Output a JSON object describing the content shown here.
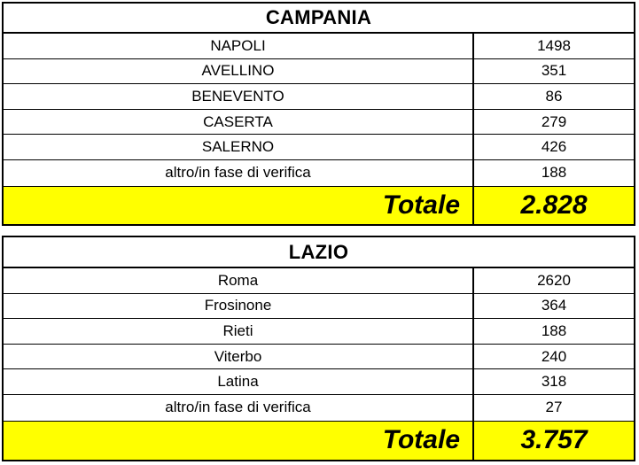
{
  "campania": {
    "title": "CAMPANIA",
    "rows": [
      {
        "name": "NAPOLI",
        "value": "1498"
      },
      {
        "name": "AVELLINO",
        "value": "351"
      },
      {
        "name": "BENEVENTO",
        "value": "86"
      },
      {
        "name": "CASERTA",
        "value": "279"
      },
      {
        "name": "SALERNO",
        "value": "426"
      },
      {
        "name": "altro/in fase di verifica",
        "value": "188"
      }
    ],
    "total_label": "Totale",
    "total_value": "2.828"
  },
  "lazio": {
    "title": "LAZIO",
    "rows": [
      {
        "name": "Roma",
        "value": "2620"
      },
      {
        "name": "Frosinone",
        "value": "364"
      },
      {
        "name": "Rieti",
        "value": "188"
      },
      {
        "name": "Viterbo",
        "value": "240"
      },
      {
        "name": "Latina",
        "value": "318"
      },
      {
        "name": "altro/in fase di verifica",
        "value": "27"
      }
    ],
    "total_label": "Totale",
    "total_value": "3.757"
  },
  "colors": {
    "total_background": "#ffff00",
    "border": "#000000"
  }
}
